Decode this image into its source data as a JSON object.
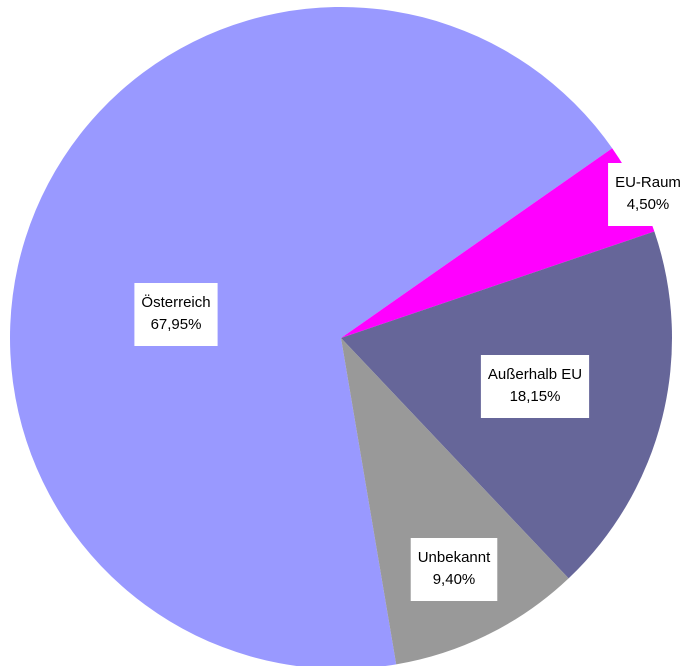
{
  "chart_data": {
    "type": "pie",
    "categories": [
      "Österreich",
      "EU-Raum",
      "Außerhalb EU",
      "Unbekannt"
    ],
    "values": [
      67.95,
      4.5,
      18.15,
      9.4
    ],
    "value_labels": [
      "67,95%",
      "4,50%",
      "18,15%",
      "9,40%"
    ],
    "colors": [
      "#9999ff",
      "#ff00ff",
      "#666699",
      "#999999"
    ]
  }
}
